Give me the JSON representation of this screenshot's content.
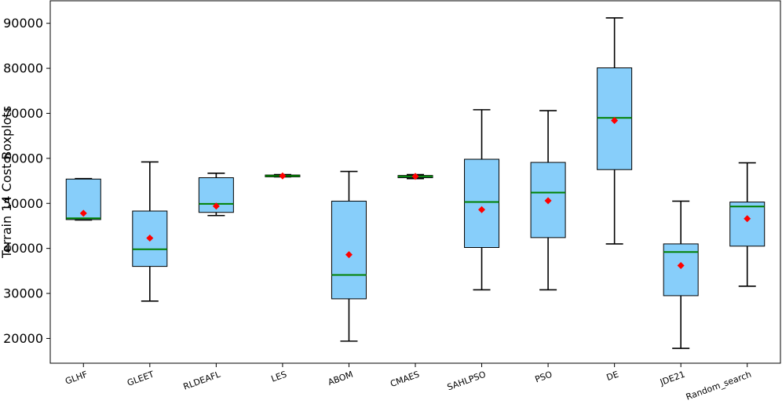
{
  "chart_data": {
    "type": "boxplot",
    "title": "",
    "xlabel": "",
    "ylabel": "Terrain 14 Cost Boxplots",
    "ylim": [
      14500,
      95000
    ],
    "yticks": [
      20000,
      30000,
      40000,
      50000,
      60000,
      70000,
      80000,
      90000
    ],
    "yticks_labels": [
      "20000",
      "30000",
      "40000",
      "50000",
      "60000",
      "70000",
      "80000",
      "90000"
    ],
    "categories": [
      "GLHF",
      "GLEET",
      "RLDEAFL",
      "LES",
      "ABOM",
      "CMAES",
      "SAHLPSO",
      "PSO",
      "DE",
      "JDE21",
      "Random_search"
    ],
    "boxes": [
      {
        "name": "GLHF",
        "whisker_low": 46300,
        "q1": 46400,
        "median": 46700,
        "q3": 55400,
        "whisker_high": 55500,
        "mean": 47800
      },
      {
        "name": "GLEET",
        "whisker_low": 28300,
        "q1": 36000,
        "median": 39800,
        "q3": 48300,
        "whisker_high": 59200,
        "mean": 42300
      },
      {
        "name": "RLDEAFL",
        "whisker_low": 47300,
        "q1": 48000,
        "median": 49900,
        "q3": 55700,
        "whisker_high": 56700,
        "mean": 49400
      },
      {
        "name": "LES",
        "whisker_low": 55900,
        "q1": 55900,
        "median": 56100,
        "q3": 56300,
        "whisker_high": 56400,
        "mean": 56100
      },
      {
        "name": "ABOM",
        "whisker_low": 19400,
        "q1": 28800,
        "median": 34100,
        "q3": 50500,
        "whisker_high": 57100,
        "mean": 38600
      },
      {
        "name": "CMAES",
        "whisker_low": 55500,
        "q1": 55700,
        "median": 56000,
        "q3": 56200,
        "whisker_high": 56400,
        "mean": 56000
      },
      {
        "name": "SAHLPSO",
        "whisker_low": 30800,
        "q1": 40200,
        "median": 50300,
        "q3": 59800,
        "whisker_high": 70800,
        "mean": 48600
      },
      {
        "name": "PSO",
        "whisker_low": 30800,
        "q1": 42400,
        "median": 52400,
        "q3": 59100,
        "whisker_high": 70600,
        "mean": 50600
      },
      {
        "name": "DE",
        "whisker_low": 41000,
        "q1": 57500,
        "median": 69000,
        "q3": 80100,
        "whisker_high": 91200,
        "mean": 68400
      },
      {
        "name": "JDE21",
        "whisker_low": 17800,
        "q1": 29500,
        "median": 39200,
        "q3": 41000,
        "whisker_high": 50500,
        "mean": 36200
      },
      {
        "name": "Random_search",
        "whisker_low": 31600,
        "q1": 40500,
        "median": 49300,
        "q3": 50300,
        "whisker_high": 59000,
        "mean": 46600
      }
    ],
    "colors": {
      "box_fill": "#87cefa",
      "box_edge": "#000000",
      "median": "#008000",
      "mean_marker": "#ff0000",
      "axes": "#000000"
    }
  }
}
